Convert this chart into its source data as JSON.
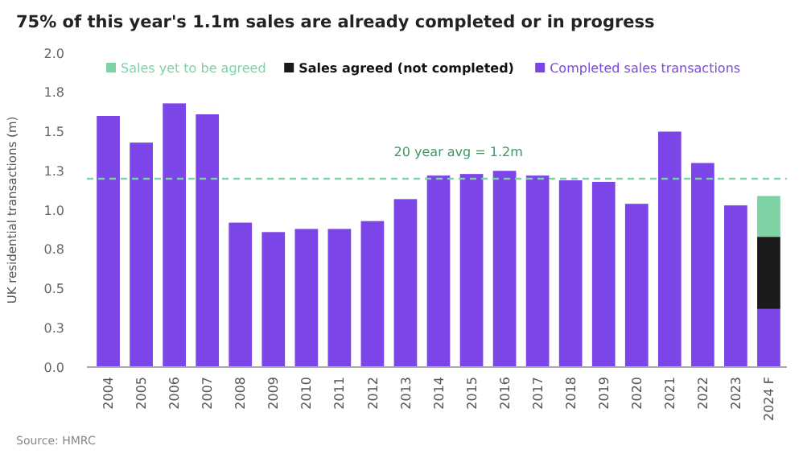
{
  "chart_data": {
    "type": "bar",
    "title": "75% of this year's 1.1m sales are already completed or in progress",
    "ylabel": "UK residential transactions (m)",
    "categories": [
      "2004",
      "2005",
      "2006",
      "2007",
      "2008",
      "2009",
      "2010",
      "2011",
      "2012",
      "2013",
      "2014",
      "2015",
      "2016",
      "2017",
      "2018",
      "2019",
      "2020",
      "2021",
      "2022",
      "2023",
      "2024 F"
    ],
    "stacked": true,
    "series": [
      {
        "name": "Completed sales transactions",
        "color": "#7b45e8",
        "values": [
          1.6,
          1.43,
          1.68,
          1.61,
          0.92,
          0.86,
          0.88,
          0.88,
          0.93,
          1.07,
          1.22,
          1.23,
          1.25,
          1.22,
          1.19,
          1.18,
          1.04,
          1.5,
          1.3,
          1.03,
          0.37
        ]
      },
      {
        "name": "Sales agreed (not completed)",
        "color": "#1a1a1a",
        "values": [
          null,
          null,
          null,
          null,
          null,
          null,
          null,
          null,
          null,
          null,
          null,
          null,
          null,
          null,
          null,
          null,
          null,
          null,
          null,
          null,
          0.46
        ]
      },
      {
        "name": "Sales yet to be agreed",
        "color": "#7ed3a4",
        "values": [
          null,
          null,
          null,
          null,
          null,
          null,
          null,
          null,
          null,
          null,
          null,
          null,
          null,
          null,
          null,
          null,
          null,
          null,
          null,
          null,
          0.26
        ]
      }
    ],
    "ylim": [
      0,
      2
    ],
    "yticks": [
      {
        "value": 0,
        "label": "0.0"
      },
      {
        "value": 0.25,
        "label": "0.3"
      },
      {
        "value": 0.5,
        "label": "0.5"
      },
      {
        "value": 0.75,
        "label": "0.8"
      },
      {
        "value": 1,
        "label": "1.0"
      },
      {
        "value": 1.25,
        "label": "1.3"
      },
      {
        "value": 1.5,
        "label": "1.5"
      },
      {
        "value": 1.75,
        "label": "1.8"
      },
      {
        "value": 2,
        "label": "2.0"
      }
    ],
    "ref_lines": [
      {
        "axis": "y",
        "value": 1.2,
        "label": "20 year avg = 1.2m",
        "color": "#7ed3a4",
        "line_style": "dashed"
      }
    ],
    "legend": "top",
    "annotations": [
      "Source: HMRC"
    ]
  }
}
